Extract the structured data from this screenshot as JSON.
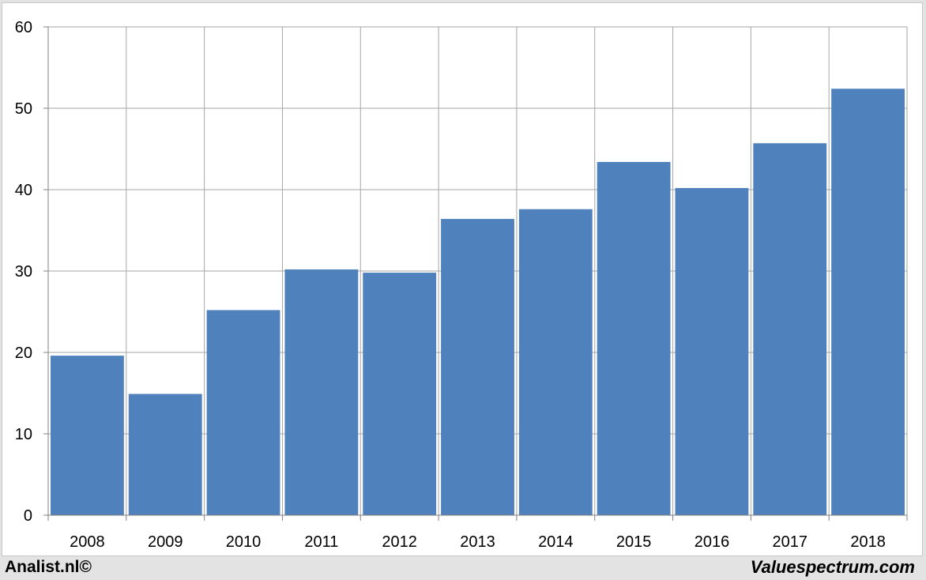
{
  "chart_data": {
    "type": "bar",
    "categories": [
      "2008",
      "2009",
      "2010",
      "2011",
      "2012",
      "2013",
      "2014",
      "2015",
      "2016",
      "2017",
      "2018"
    ],
    "values": [
      19.6,
      14.9,
      25.2,
      30.2,
      29.8,
      36.4,
      37.6,
      43.4,
      40.2,
      45.7,
      52.4
    ],
    "title": "",
    "xlabel": "",
    "ylabel": "",
    "ylim": [
      0,
      60
    ],
    "yticks": [
      "0",
      "10",
      "20",
      "30",
      "40",
      "50",
      "60"
    ],
    "grid": true,
    "bar_color": "#4f81bd",
    "grid_color": "#a6a6a6"
  },
  "footer": {
    "left": "Analist.nl©",
    "right": "Valuespectrum.com"
  }
}
